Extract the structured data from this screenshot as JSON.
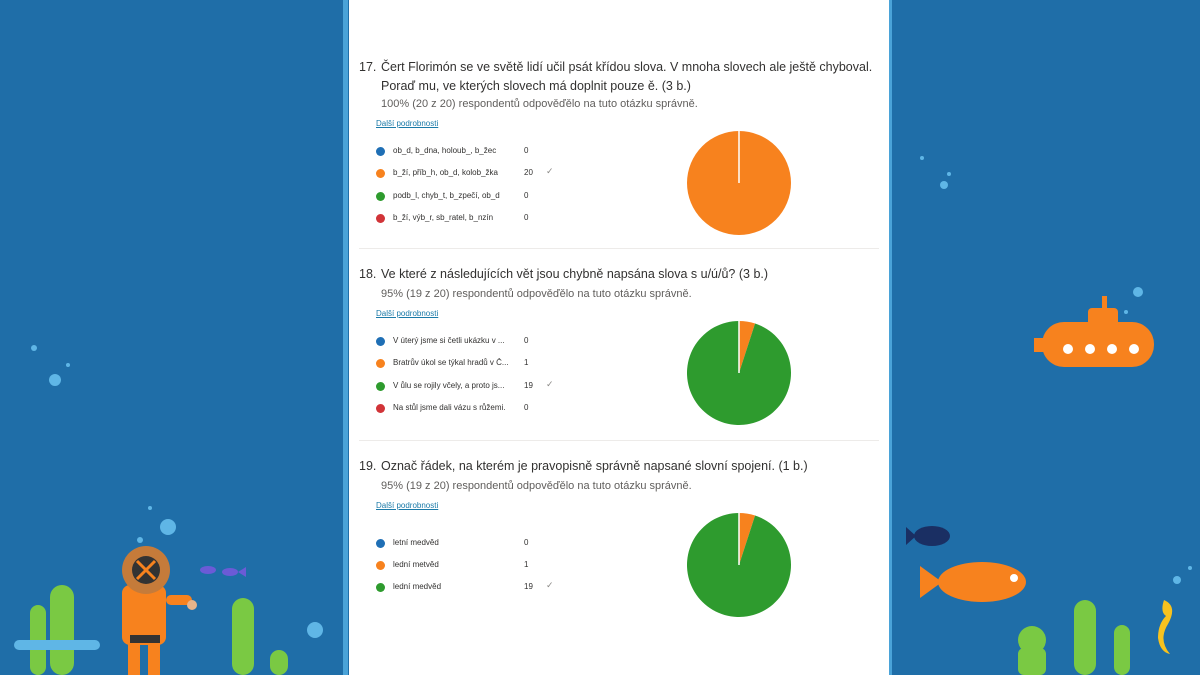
{
  "questions": [
    {
      "number": "17.",
      "text": "Čert Florimón se ve světě lidí učil psát křídou slova. V mnoha slovech ale ještě chyboval. Poraď mu, ve kterých slovech má doplnit pouze ě. (3 b.)",
      "stat": "100% (20 z 20) respondentů odpověďělo na tuto otázku správně.",
      "link": "Další podrobnosti",
      "options": [
        {
          "label": "ob_d, b_dna, holoub_, b_žec",
          "count": "0",
          "color": "#1f6fb5",
          "correct": false
        },
        {
          "label": "b_ží, příb_h, ob_d, kolob_žka",
          "count": "20",
          "color": "#f7821e",
          "correct": true
        },
        {
          "label": "podb_l, chyb_t, b_zpečí, ob_d",
          "count": "0",
          "color": "#2e9b2e",
          "correct": false
        },
        {
          "label": "b_ží, výb_r, sb_ratel, b_nzín",
          "count": "0",
          "color": "#d13438",
          "correct": false
        }
      ]
    },
    {
      "number": "18.",
      "text": "Ve které z následujících vět jsou chybně napsána slova s u/ú/ů? (3 b.)",
      "stat": "95% (19 z 20) respondentů odpověďělo na tuto otázku správně.",
      "link": "Další podrobnosti",
      "options": [
        {
          "label": "V úterý jsme si četli ukázku v ...",
          "count": "0",
          "color": "#1f6fb5",
          "correct": false
        },
        {
          "label": "Bratrův úkol se týkal hradů v Č...",
          "count": "1",
          "color": "#f7821e",
          "correct": false
        },
        {
          "label": "V ůlu se rojily včely, a proto js...",
          "count": "19",
          "color": "#2e9b2e",
          "correct": true
        },
        {
          "label": "Na stůl jsme dali vázu s růžemi.",
          "count": "0",
          "color": "#d13438",
          "correct": false
        }
      ]
    },
    {
      "number": "19.",
      "text": "Označ řádek, na kterém je pravopisně správně napsané slovní spojení. (1 b.)",
      "stat": "95% (19 z 20) respondentů odpověďělo na tuto otázku správně.",
      "link": "Další podrobnosti",
      "options": [
        {
          "label": "letní medvěd",
          "count": "0",
          "color": "#1f6fb5",
          "correct": false
        },
        {
          "label": "lední metvěd",
          "count": "1",
          "color": "#f7821e",
          "correct": false
        },
        {
          "label": "lední medvěd",
          "count": "19",
          "color": "#2e9b2e",
          "correct": true
        }
      ]
    }
  ],
  "check_symbol": "✓",
  "chart_data": [
    {
      "type": "pie",
      "categories": [
        "ob_d, b_dna, holoub_, b_žec",
        "b_ží, příb_h, ob_d, kolob_žka",
        "podb_l, chyb_t, b_zpečí, ob_d",
        "b_ží, výb_r, sb_ratel, b_nzín"
      ],
      "values": [
        0,
        20,
        0,
        0
      ]
    },
    {
      "type": "pie",
      "categories": [
        "V úterý jsme si četli ukázku v ...",
        "Bratrův úkol se týkal hradů v Č...",
        "V ůlu se rojily včely, a proto js...",
        "Na stůl jsme dali vázu s růžemi."
      ],
      "values": [
        0,
        1,
        19,
        0
      ]
    },
    {
      "type": "pie",
      "categories": [
        "letní medvěd",
        "lední metvěd",
        "lední medvěd"
      ],
      "values": [
        0,
        1,
        19
      ]
    }
  ]
}
